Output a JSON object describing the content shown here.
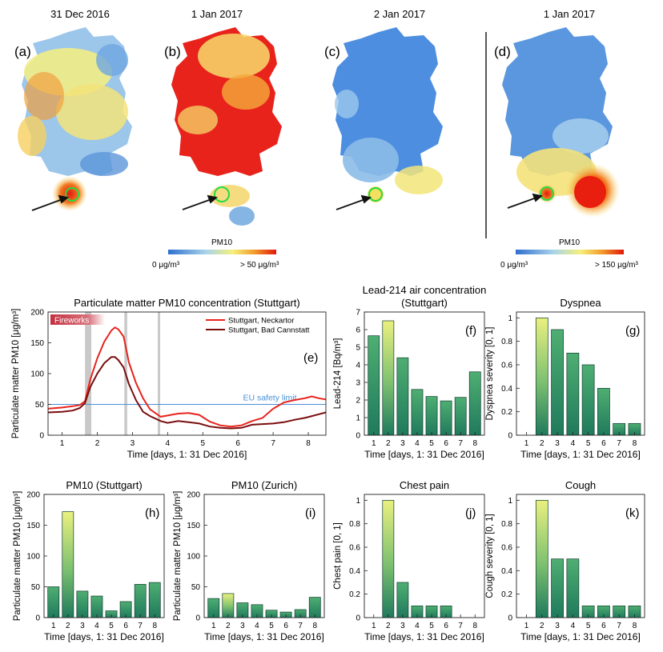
{
  "maps": {
    "panels": [
      {
        "date": "31 Dec 2016",
        "label": "(a)"
      },
      {
        "date": "1 Jan 2017",
        "label": "(b)"
      },
      {
        "date": "2 Jan 2017",
        "label": "(c)"
      },
      {
        "date": "1 Jan 2017",
        "label": "(d)"
      }
    ],
    "colorbar_left": {
      "title": "PM10",
      "min_label": "0 μg/m³",
      "max_label": "> 50 μg/m³"
    },
    "colorbar_right": {
      "title": "PM10",
      "min_label": "0 μg/m³",
      "max_label": "> 150 μg/m³"
    }
  },
  "colors": {
    "blue": "#3a7fd6",
    "yellow": "#f4ee6a",
    "red": "#e81e0f",
    "bar_top": "#e6ec7c",
    "bar_bottom": "#1f7a5c",
    "safety": "#4a90d9",
    "neckartor": "#e8231c",
    "cannstatt": "#7a0d0d",
    "event": "#c9c9c9"
  },
  "chart_data": [
    {
      "id": "e",
      "type": "line",
      "panel_label": "(e)",
      "title": "Particulate matter PM10 concentration (Stuttgart)",
      "xlabel": "Time [days, 1: 31 Dec 2016]",
      "ylabel": "Particulate matter PM10 [μg/m³]",
      "xlim": [
        0.6,
        8.5
      ],
      "ylim": [
        0,
        200
      ],
      "xticks": [
        1,
        2,
        3,
        4,
        5,
        6,
        7,
        8
      ],
      "yticks": [
        0,
        50,
        100,
        150,
        200
      ],
      "annotation": "Fireworks",
      "reference_line": {
        "label": "EU safety limit",
        "y": 50
      },
      "event_bands": [
        [
          1.65,
          1.83
        ],
        [
          2.77,
          2.85
        ],
        [
          3.72,
          3.77
        ]
      ],
      "series": [
        {
          "name": "Stuttgart, Neckartor",
          "x": [
            0.6,
            1.0,
            1.3,
            1.5,
            1.65,
            1.8,
            2.0,
            2.2,
            2.4,
            2.5,
            2.6,
            2.75,
            2.9,
            3.1,
            3.3,
            3.5,
            3.8,
            4.0,
            4.3,
            4.6,
            4.9,
            5.2,
            5.5,
            5.8,
            6.1,
            6.4,
            6.7,
            7.0,
            7.3,
            7.6,
            7.9,
            8.1,
            8.3,
            8.5
          ],
          "y": [
            43,
            45,
            47,
            49,
            55,
            90,
            125,
            152,
            170,
            175,
            172,
            160,
            118,
            85,
            60,
            42,
            30,
            32,
            35,
            36,
            33,
            22,
            16,
            14,
            16,
            23,
            28,
            43,
            53,
            57,
            60,
            63,
            60,
            58
          ]
        },
        {
          "name": "Stuttgart, Bad Cannstatt",
          "x": [
            0.6,
            1.0,
            1.3,
            1.5,
            1.65,
            1.8,
            2.0,
            2.2,
            2.4,
            2.5,
            2.6,
            2.75,
            2.9,
            3.1,
            3.3,
            3.5,
            3.8,
            4.0,
            4.3,
            4.6,
            4.9,
            5.2,
            5.5,
            5.8,
            6.1,
            6.4,
            6.7,
            7.0,
            7.3,
            7.6,
            7.9,
            8.1,
            8.3,
            8.5
          ],
          "y": [
            37,
            38,
            40,
            44,
            52,
            78,
            100,
            117,
            127,
            127,
            122,
            110,
            83,
            57,
            38,
            31,
            23,
            20,
            23,
            21,
            19,
            14,
            12,
            11,
            12,
            17,
            18,
            19,
            21,
            25,
            28,
            31,
            34,
            37
          ]
        }
      ]
    },
    {
      "id": "f",
      "type": "bar",
      "panel_label": "(f)",
      "title_lines": [
        "Lead-214 air concentration",
        "(Stuttgart)"
      ],
      "ylabel": "Lead-214 [Bq/m³]",
      "xlabel": "Time [days, 1: 31 Dec 2016]",
      "ylim": [
        0,
        7
      ],
      "yticks": [
        0,
        1,
        2,
        3,
        4,
        5,
        6,
        7
      ],
      "categories": [
        "1",
        "2",
        "3",
        "4",
        "5",
        "6",
        "7",
        "8"
      ],
      "values": [
        5.65,
        6.5,
        4.4,
        2.6,
        2.2,
        1.95,
        2.15,
        3.6
      ],
      "peak": 1
    },
    {
      "id": "g",
      "type": "bar",
      "panel_label": "(g)",
      "title_lines": [
        "Dyspnea"
      ],
      "ylabel": "Dyspnea severity [0, 1]",
      "xlabel": "Time [days, 1: 31 Dec 2016]",
      "ylim": [
        0,
        1.05
      ],
      "yticks": [
        0,
        0.2,
        0.4,
        0.6,
        0.8,
        1
      ],
      "ytick_labels": [
        "0",
        "0.2",
        "0.4",
        "0.6",
        "0.8",
        "1"
      ],
      "categories": [
        "1",
        "2",
        "3",
        "4",
        "5",
        "6",
        "7",
        "8"
      ],
      "values": [
        0,
        1.0,
        0.9,
        0.7,
        0.6,
        0.4,
        0.1,
        0.1
      ],
      "peak": 1
    },
    {
      "id": "h",
      "type": "bar",
      "panel_label": "(h)",
      "title_lines": [
        "PM10 (Stuttgart)"
      ],
      "ylabel": "Particulate matter PM10 [μg/m³]",
      "xlabel": "Time [days, 1: 31 Dec 2016]",
      "ylim": [
        0,
        200
      ],
      "yticks": [
        0,
        50,
        100,
        150,
        200
      ],
      "categories": [
        "1",
        "2",
        "3",
        "4",
        "5",
        "6",
        "7",
        "8"
      ],
      "values": [
        50,
        172,
        43,
        35,
        11,
        26,
        54,
        57
      ],
      "peak": 1
    },
    {
      "id": "i",
      "type": "bar",
      "panel_label": "(i)",
      "title_lines": [
        "PM10 (Zurich)"
      ],
      "ylabel": "Particulate matter PM10 [μg/m³]",
      "xlabel": "Time [days, 1: 31 Dec 2016]",
      "ylim": [
        0,
        200
      ],
      "yticks": [
        0,
        50,
        100,
        150,
        200
      ],
      "categories": [
        "1",
        "2",
        "3",
        "4",
        "5",
        "6",
        "7",
        "8"
      ],
      "values": [
        31,
        39,
        24,
        21,
        12,
        9,
        13,
        33
      ],
      "peak": 1
    },
    {
      "id": "j",
      "type": "bar",
      "panel_label": "(j)",
      "title_lines": [
        "Chest pain"
      ],
      "ylabel": "Chest pain [0, 1]",
      "xlabel": "Time [days, 1: 31 Dec 2016]",
      "ylim": [
        0,
        1.05
      ],
      "yticks": [
        0,
        0.2,
        0.4,
        0.6,
        0.8,
        1
      ],
      "ytick_labels": [
        "0",
        "0.2",
        "0.4",
        "0.6",
        "0.8",
        "1"
      ],
      "categories": [
        "1",
        "2",
        "3",
        "4",
        "5",
        "6",
        "7",
        "8"
      ],
      "values": [
        0,
        1.0,
        0.3,
        0.1,
        0.1,
        0.1,
        0,
        0
      ],
      "peak": 1
    },
    {
      "id": "k",
      "type": "bar",
      "panel_label": "(k)",
      "title_lines": [
        "Cough"
      ],
      "ylabel": "Cough severity [0, 1]",
      "xlabel": "Time [days, 1: 31 Dec 2016]",
      "ylim": [
        0,
        1.05
      ],
      "yticks": [
        0,
        0.2,
        0.4,
        0.6,
        0.8,
        1
      ],
      "ytick_labels": [
        "0",
        "0.2",
        "0.4",
        "0.6",
        "0.8",
        "1"
      ],
      "categories": [
        "1",
        "2",
        "3",
        "4",
        "5",
        "6",
        "7",
        "8"
      ],
      "values": [
        0,
        1.0,
        0.5,
        0.5,
        0.1,
        0.1,
        0.1,
        0.1
      ],
      "peak": 1
    }
  ]
}
